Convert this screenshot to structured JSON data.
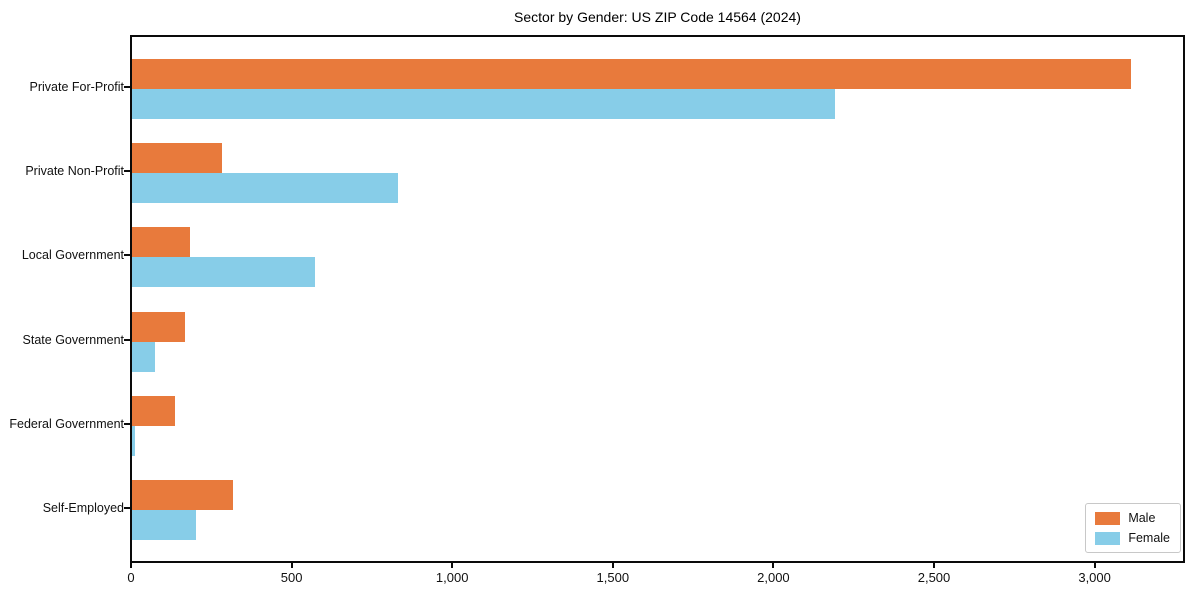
{
  "title": "Sector by Gender: US ZIP Code 14564 (2024)",
  "chart_data": {
    "type": "bar",
    "orientation": "horizontal",
    "title": "Sector by Gender: US ZIP Code 14564 (2024)",
    "categories": [
      "Private For-Profit",
      "Private Non-Profit",
      "Local Government",
      "State Government",
      "Federal Government",
      "Self-Employed"
    ],
    "series": [
      {
        "name": "Male",
        "color": "#E87A3C",
        "values": [
          3110,
          280,
          180,
          165,
          135,
          313
        ]
      },
      {
        "name": "Female",
        "color": "#87CDE8",
        "values": [
          2190,
          827,
          570,
          72,
          8,
          198
        ]
      }
    ],
    "xlabel": "",
    "ylabel": "",
    "xlim": [
      0,
      3272
    ],
    "xticks": [
      0,
      500,
      1000,
      1500,
      2000,
      2500,
      3000
    ],
    "xtick_labels": [
      "0",
      "500",
      "1,000",
      "1,500",
      "2,000",
      "2,500",
      "3,000"
    ],
    "grid": false,
    "legend": {
      "position": "lower right",
      "entries": [
        "Male",
        "Female"
      ]
    }
  },
  "colors": {
    "male": "#E87A3C",
    "female": "#87CDE8",
    "spine": "#0a0a0a",
    "text": "#111111",
    "legend_border": "#c8c8c8",
    "background": "#ffffff"
  }
}
